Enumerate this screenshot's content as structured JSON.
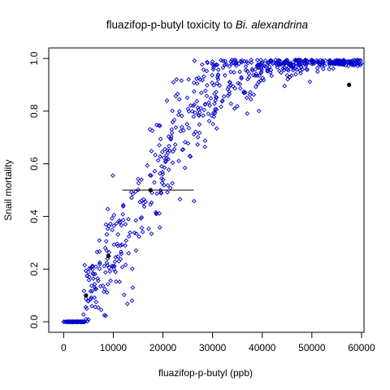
{
  "chart_data": {
    "type": "scatter",
    "title_main": "fluazifop-p-butyl toxicity to ",
    "title_species": "Bi. alexandrina",
    "xlabel": "fluazifop-p-butyl (ppb)",
    "ylabel": "Snail mortality",
    "xlim": [
      -3000,
      60500
    ],
    "ylim": [
      -0.04,
      1.04
    ],
    "x_ticks": [
      0,
      10000,
      20000,
      30000,
      40000,
      50000,
      60000
    ],
    "x_tick_labels": [
      "0",
      "10000",
      "20000",
      "30000",
      "40000",
      "50000",
      "60000"
    ],
    "y_ticks": [
      0.0,
      0.2,
      0.4,
      0.6,
      0.8,
      1.0
    ],
    "y_tick_labels": [
      "0.0",
      "0.2",
      "0.4",
      "0.6",
      "0.8",
      "1.0"
    ],
    "grid": false,
    "simulated_series": {
      "name": "",
      "color": "#0000cc",
      "marker": "open-diamond",
      "n": 650,
      "x_range": [
        4000,
        60000
      ],
      "logistic_midpoint": 17500,
      "logistic_scale": 6500,
      "zero_points_x_range": [
        0,
        4300
      ]
    },
    "observed_points": {
      "color": "#000000",
      "marker": "filled-circle",
      "x": [
        4500,
        9000,
        17500,
        57500
      ],
      "y": [
        0.1,
        0.25,
        0.5,
        0.9
      ]
    },
    "lc50_segment": {
      "color": "#000000",
      "x": [
        11800,
        26200
      ],
      "y": 0.5
    }
  }
}
